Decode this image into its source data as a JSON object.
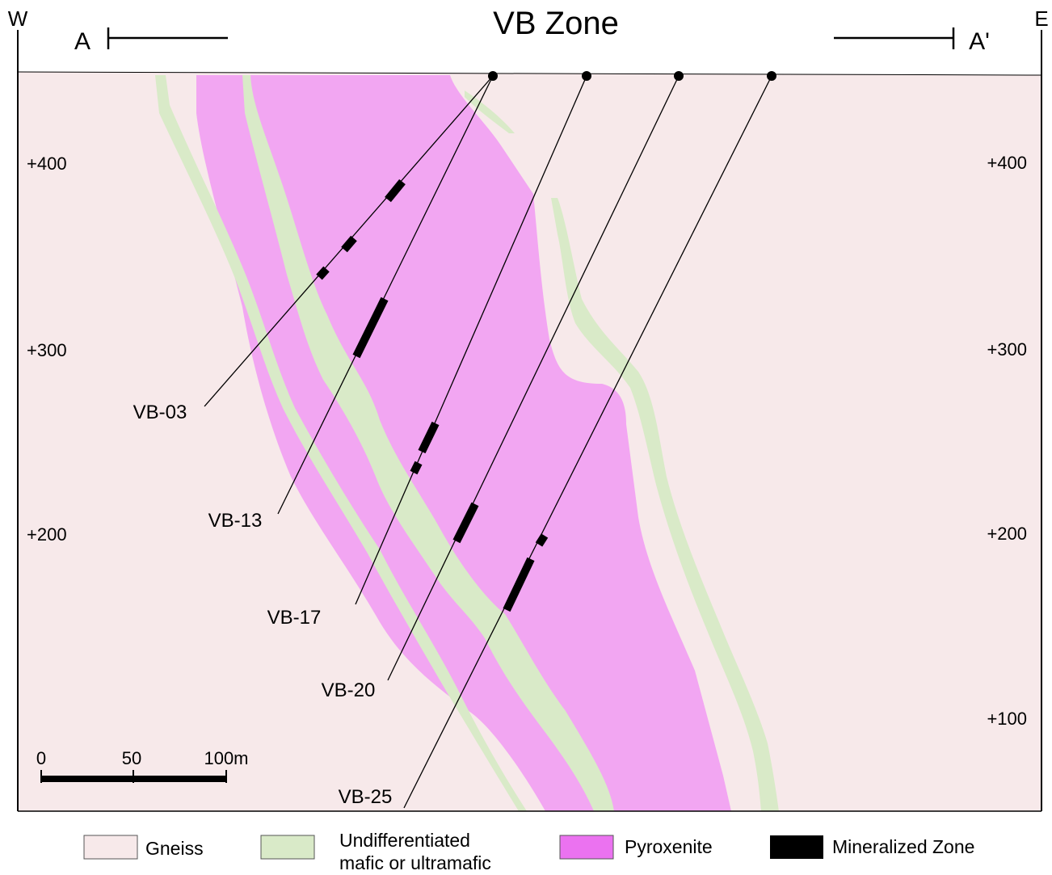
{
  "title": "VB Zone",
  "compass": {
    "west": "W",
    "east": "E"
  },
  "section_line": {
    "start": "A",
    "end": "A'"
  },
  "elevation_labels": {
    "left": [
      "+400",
      "+300",
      "+200"
    ],
    "right": [
      "+400",
      "+300",
      "+200",
      "+100"
    ]
  },
  "drillholes": [
    "VB-03",
    "VB-13",
    "VB-17",
    "VB-20",
    "VB-25"
  ],
  "scale_bar": {
    "labels": [
      "0",
      "50",
      "100m"
    ]
  },
  "legend": [
    {
      "label": "Gneiss",
      "color": "#F7E9EA"
    },
    {
      "label_line1": "Undifferentiated",
      "label_line2": "mafic or ultramafic",
      "color": "#D9EAC8"
    },
    {
      "label": "Pyroxenite",
      "color": "#F2A6F2"
    },
    {
      "label": "Mineralized Zone",
      "color": "#000000"
    }
  ]
}
